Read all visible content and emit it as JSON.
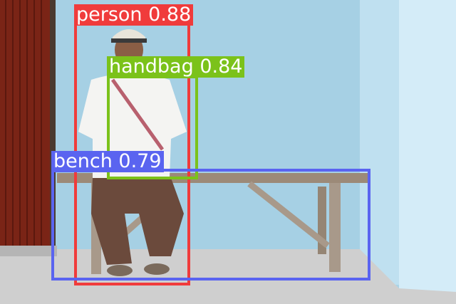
{
  "detections": [
    {
      "label": "person",
      "score": "0.88",
      "color": "#f03b3b"
    },
    {
      "label": "handbag",
      "score": "0.84",
      "color": "#7bc21a"
    },
    {
      "label": "bench",
      "score": "0.79",
      "color": "#5a64f0"
    }
  ],
  "scene": {
    "wall_color": "#a9d4e8",
    "door_color": "#7a2416",
    "floor_color": "#cfcfcf"
  }
}
